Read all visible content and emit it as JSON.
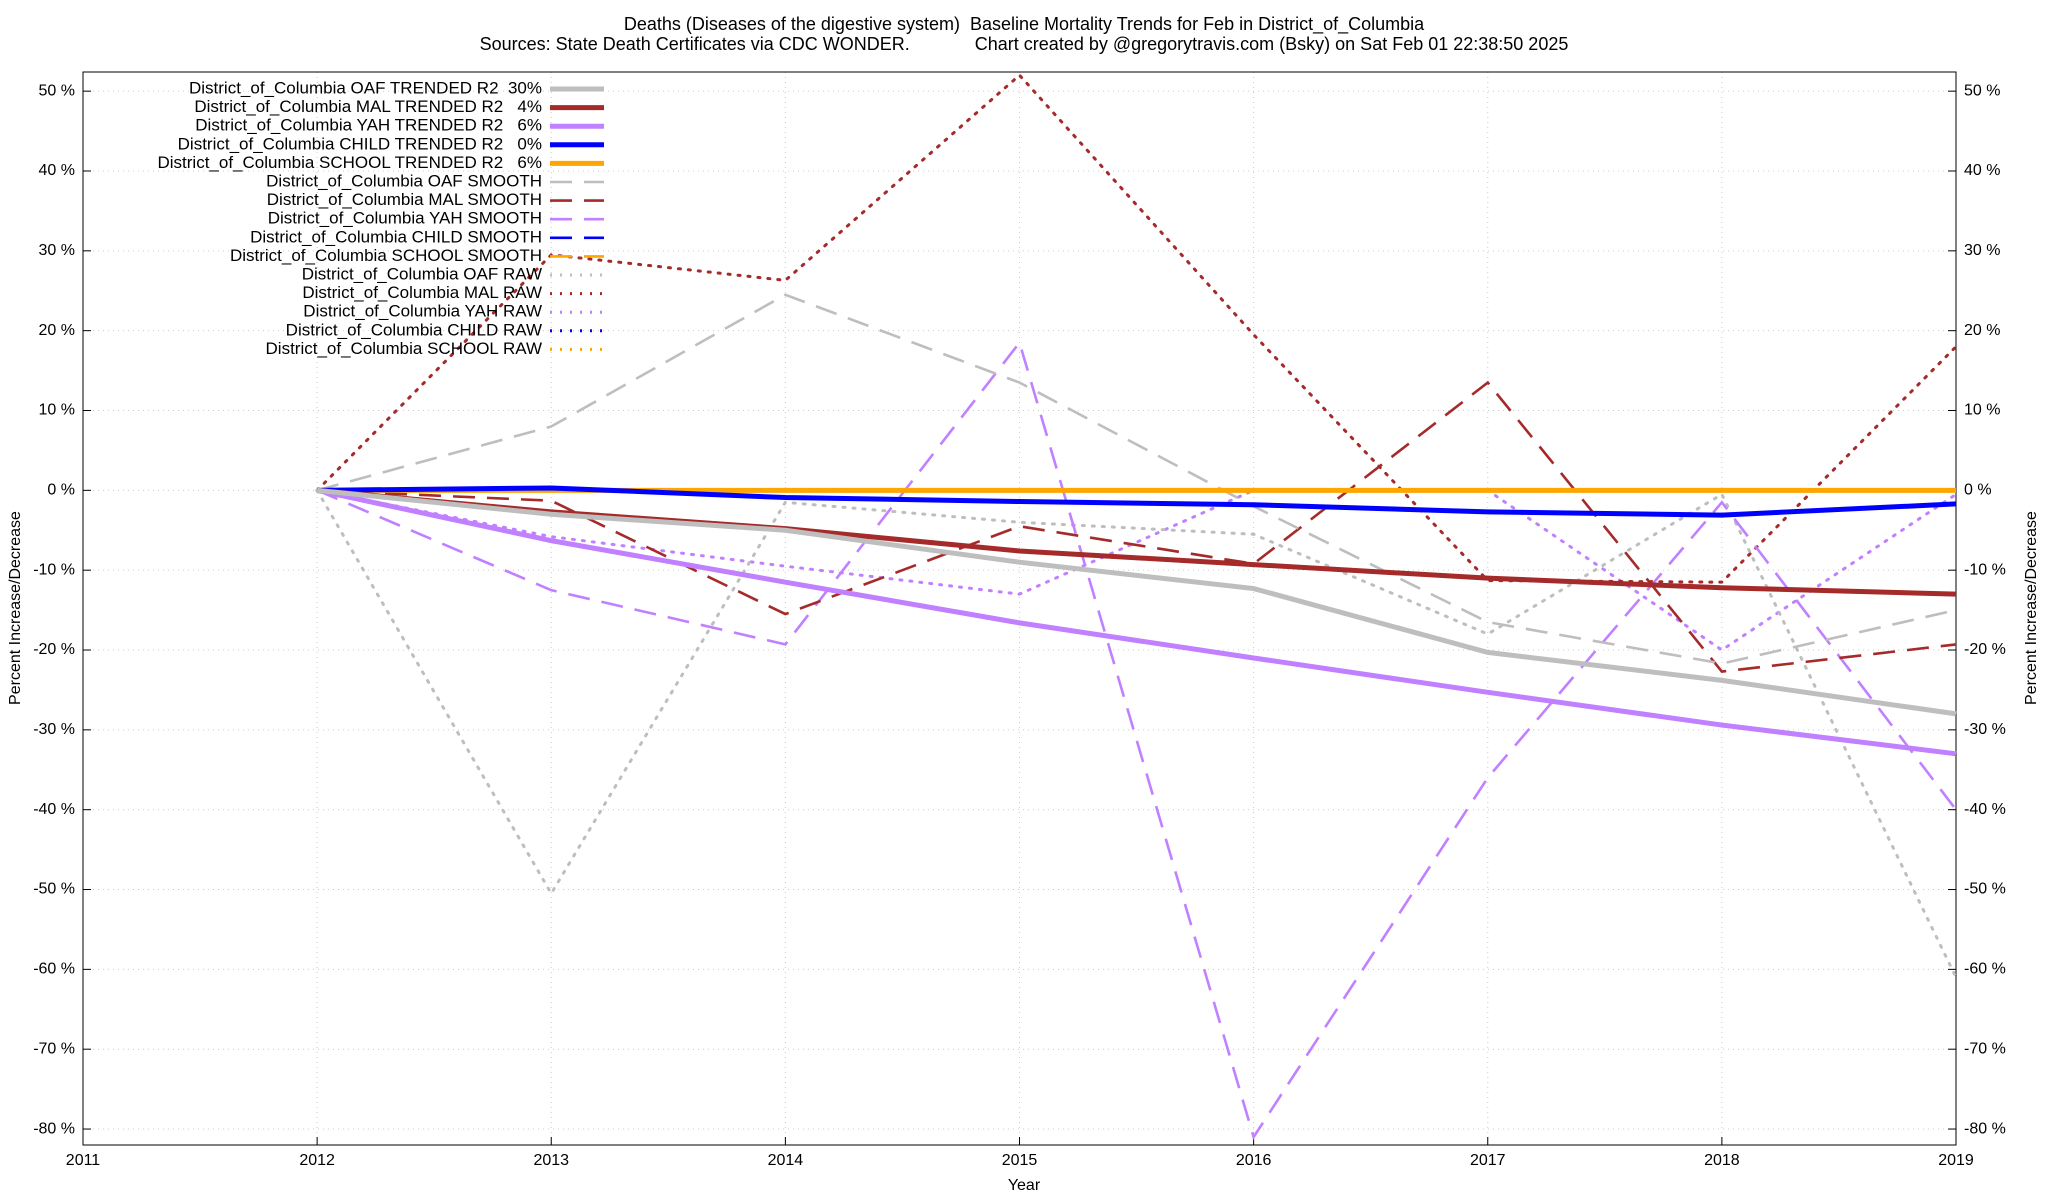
{
  "chart_data": {
    "type": "line",
    "title": "Deaths (Diseases of the digestive system)  Baseline Mortality Trends for Feb in District_of_Columbia",
    "subtitle": "Sources: State Death Certificates via CDC WONDER.             Chart created by @gregorytravis.com (Bsky) on Sat Feb 01 22:38:50 2025",
    "x_label": "Year",
    "y_label": "Percent Increase/Decrease",
    "y2_label": "Percent Increase/Decrease",
    "x": [
      2012,
      2013,
      2014,
      2015,
      2016,
      2017,
      2018,
      2019
    ],
    "xlim": [
      2011,
      2019
    ],
    "xticks": [
      2011,
      2012,
      2013,
      2014,
      2015,
      2016,
      2017,
      2018,
      2019
    ],
    "ylim": [
      -82,
      52.4
    ],
    "yticks": [
      {
        "value": -80,
        "label": "-80 %"
      },
      {
        "value": -70,
        "label": "-70 %"
      },
      {
        "value": -60,
        "label": "-60 %"
      },
      {
        "value": -50,
        "label": "-50 %"
      },
      {
        "value": -40,
        "label": "-40 %"
      },
      {
        "value": -30,
        "label": "-30 %"
      },
      {
        "value": -20,
        "label": "-20 %"
      },
      {
        "value": -10,
        "label": "-10 %"
      },
      {
        "value": 0,
        "label": "0 %"
      },
      {
        "value": 10,
        "label": "10 %"
      },
      {
        "value": 20,
        "label": "20 %"
      },
      {
        "value": 30,
        "label": "30 %"
      },
      {
        "value": 40,
        "label": "40 %"
      },
      {
        "value": 50,
        "label": "50 %"
      }
    ],
    "grid": true,
    "legend": "top-left",
    "series": [
      {
        "name": "District_of_Columbia OAF TRENDED R2  30%",
        "color": "#bebebe",
        "style": "solid",
        "values": [
          0,
          -3,
          -5,
          -9,
          -12.3,
          -20.3,
          -23.8,
          -28
        ]
      },
      {
        "name": "District_of_Columbia MAL TRENDED R2   4%",
        "color": "#a52a2a",
        "style": "solid",
        "values": [
          0,
          -2.7,
          -4.8,
          -7.6,
          -9.3,
          -11,
          -12.2,
          -13
        ]
      },
      {
        "name": "District_of_Columbia YAH TRENDED R2   6%",
        "color": "#c080ff",
        "style": "solid",
        "values": [
          0,
          -6.3,
          -11.5,
          -16.6,
          -21,
          -25.3,
          -29.4,
          -33
        ]
      },
      {
        "name": "District_of_Columbia CHILD TRENDED R2   0%",
        "color": "#0000ff",
        "style": "solid",
        "values": [
          0,
          0.3,
          -0.9,
          -1.4,
          -1.8,
          -2.7,
          -3.1,
          -1.7
        ]
      },
      {
        "name": "District_of_Columbia SCHOOL TRENDED R2   6%",
        "color": "#ffa500",
        "style": "solid",
        "values": [
          0,
          0,
          0,
          0,
          0,
          0,
          0,
          0
        ]
      },
      {
        "name": "District_of_Columbia OAF SMOOTH",
        "color": "#bebebe",
        "style": "dashed",
        "values": [
          0,
          8,
          24.5,
          13.5,
          -2,
          -16.5,
          -21.7,
          -15
        ]
      },
      {
        "name": "District_of_Columbia MAL SMOOTH",
        "color": "#a52a2a",
        "style": "dashed",
        "values": [
          0,
          -1.3,
          -15.5,
          -4.5,
          -9.2,
          13.5,
          -22.7,
          -19.3
        ]
      },
      {
        "name": "District_of_Columbia YAH SMOOTH",
        "color": "#c080ff",
        "style": "dashed",
        "values": [
          0,
          -12.5,
          -19.3,
          18.5,
          -81,
          -36,
          -1.5,
          -40
        ]
      },
      {
        "name": "District_of_Columbia CHILD SMOOTH",
        "color": "#0000ff",
        "style": "dashed",
        "values": [
          0,
          0,
          0,
          0,
          0,
          0,
          0,
          0
        ]
      },
      {
        "name": "District_of_Columbia SCHOOL SMOOTH",
        "color": "#ffa500",
        "style": "dashed",
        "values": [
          0,
          0,
          0,
          0,
          0,
          0,
          0,
          0
        ]
      },
      {
        "name": "District_of_Columbia OAF RAW",
        "color": "#bebebe",
        "style": "dotted",
        "values": [
          0,
          -50.5,
          -1.5,
          -4,
          -5.5,
          -18,
          -0.5,
          -61
        ]
      },
      {
        "name": "District_of_Columbia MAL RAW",
        "color": "#a52a2a",
        "style": "dotted",
        "values": [
          0,
          29.5,
          26.3,
          52,
          19.5,
          -11.3,
          -11.5,
          18
        ]
      },
      {
        "name": "District_of_Columbia YAH RAW",
        "color": "#c080ff",
        "style": "dotted",
        "values": [
          0,
          -5.8,
          -9.5,
          -13,
          0,
          0,
          -20,
          -0.5
        ]
      },
      {
        "name": "District_of_Columbia CHILD RAW",
        "color": "#0000ff",
        "style": "dotted",
        "values": [
          0,
          0,
          0,
          0,
          0,
          0,
          0,
          0
        ]
      },
      {
        "name": "District_of_Columbia SCHOOL RAW",
        "color": "#ffa500",
        "style": "dotted",
        "values": [
          0,
          0,
          0,
          0,
          0,
          0,
          0,
          0
        ]
      }
    ]
  }
}
